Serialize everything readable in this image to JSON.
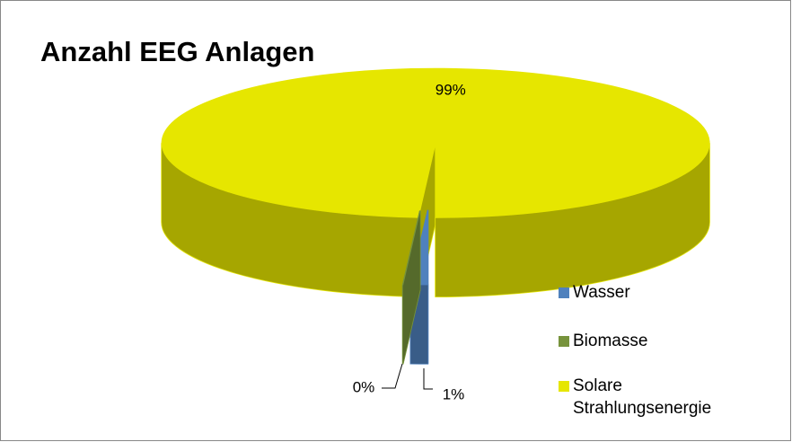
{
  "chart_data": {
    "type": "pie3d",
    "title": "Anzahl EEG Anlagen",
    "categories": [
      "Wasser",
      "Biomasse",
      "Solare Strahlungsenergie"
    ],
    "legend_labels": [
      [
        "Wasser"
      ],
      [
        "Biomasse"
      ],
      [
        "Solare",
        "Strahlungsenergie"
      ]
    ],
    "values": [
      1,
      0,
      99
    ],
    "value_labels": [
      "1%",
      "0%",
      "99%"
    ],
    "colors": [
      "#4f81bd",
      "#77933c",
      "#e6e600"
    ],
    "legend": "right"
  }
}
